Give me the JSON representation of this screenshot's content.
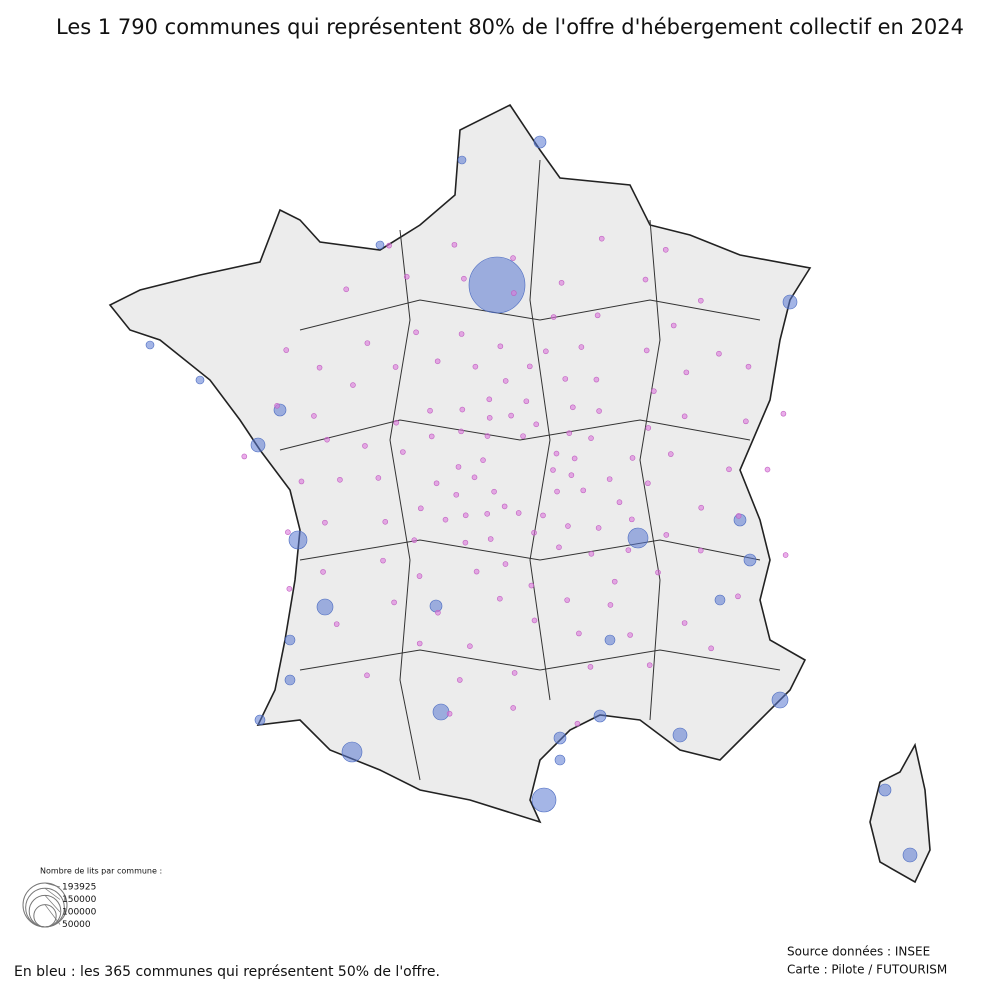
{
  "title": "Les 1 790 communes qui représentent 80% de l'offre d'hébergement collectif en 2024",
  "legend": {
    "title": "Nombre de lits par commune :",
    "values": [
      193925,
      150000,
      100000,
      50000
    ]
  },
  "note": "En bleu : les 365 communes qui représentent 50% de l'offre.",
  "source": [
    "Source données : INSEE",
    "Carte : Pilote / FUTOURISM"
  ]
}
